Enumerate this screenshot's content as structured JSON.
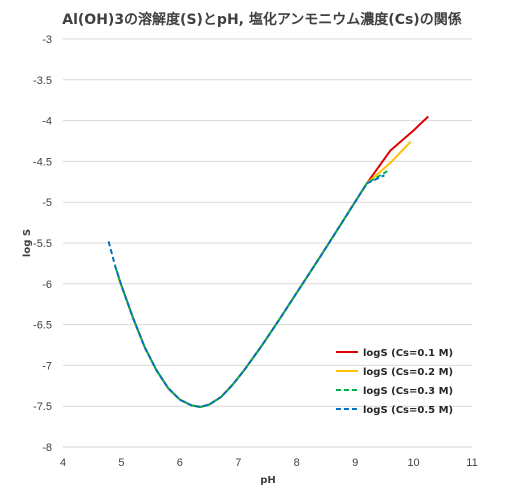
{
  "chart_data": {
    "type": "line",
    "title": "Al(OH)3の溶解度(S)とpH, 塩化アンモニウム濃度(Cs)の関係",
    "xlabel": "pH",
    "ylabel": "log S",
    "xlim": [
      4,
      11
    ],
    "ylim": [
      -8,
      -3
    ],
    "xticks": [
      4,
      5,
      6,
      7,
      8,
      9,
      10,
      11
    ],
    "yticks": [
      -3,
      -3.5,
      -4,
      -4.5,
      -5,
      -5.5,
      -6,
      -6.5,
      -7,
      -7.5,
      -8
    ],
    "xtick_labels": [
      "4",
      "5",
      "6",
      "7",
      "8",
      "9",
      "10",
      "11"
    ],
    "ytick_labels": [
      "-3",
      "-3.5",
      "-4",
      "-4.5",
      "-5",
      "-5.5",
      "-6",
      "-6.5",
      "-7",
      "-7.5",
      "-8"
    ],
    "grid": "horizontal",
    "legend_position": "bottom-right",
    "series": [
      {
        "name": "logS (Cs=0.1 M)",
        "color": "#e00000",
        "dash": "solid",
        "x": [
          5.0,
          5.2,
          5.4,
          5.6,
          5.8,
          6.0,
          6.2,
          6.35,
          6.5,
          6.7,
          6.9,
          7.1,
          7.4,
          7.7,
          8.0,
          8.4,
          8.8,
          9.2,
          9.6,
          10.0,
          10.25
        ],
        "y": [
          -6.02,
          -6.42,
          -6.78,
          -7.06,
          -7.28,
          -7.42,
          -7.49,
          -7.51,
          -7.48,
          -7.39,
          -7.24,
          -7.06,
          -6.76,
          -6.44,
          -6.11,
          -5.67,
          -5.22,
          -4.77,
          -4.37,
          -4.12,
          -3.95
        ]
      },
      {
        "name": "logS (Cs=0.2 M)",
        "color": "#ffc000",
        "dash": "solid",
        "x": [
          4.95,
          5.2,
          5.4,
          5.6,
          5.8,
          6.0,
          6.2,
          6.35,
          6.5,
          6.7,
          6.9,
          7.1,
          7.4,
          7.7,
          8.0,
          8.4,
          8.8,
          9.2,
          9.6,
          9.95
        ],
        "y": [
          -5.93,
          -6.42,
          -6.78,
          -7.06,
          -7.28,
          -7.42,
          -7.49,
          -7.51,
          -7.48,
          -7.39,
          -7.24,
          -7.06,
          -6.76,
          -6.44,
          -6.11,
          -5.67,
          -5.22,
          -4.77,
          -4.52,
          -4.26
        ]
      },
      {
        "name": "logS (Cs=0.3 M)",
        "color": "#00b050",
        "dash": "dashed",
        "x": [
          4.9,
          5.0,
          5.2,
          5.4,
          5.6,
          5.8,
          6.0,
          6.2,
          6.35,
          6.5,
          6.7,
          6.9,
          7.1,
          7.4,
          7.7,
          8.0,
          8.4,
          8.8,
          9.2,
          9.55
        ],
        "y": [
          -5.8,
          -6.02,
          -6.42,
          -6.78,
          -7.06,
          -7.28,
          -7.42,
          -7.49,
          -7.51,
          -7.48,
          -7.39,
          -7.24,
          -7.06,
          -6.76,
          -6.44,
          -6.11,
          -5.67,
          -5.22,
          -4.77,
          -4.62
        ]
      },
      {
        "name": "logS (Cs=0.5 M)",
        "color": "#0070c0",
        "dash": "dashed",
        "x": [
          4.78,
          4.9,
          5.0,
          5.2,
          5.4,
          5.6,
          5.8,
          6.0,
          6.2,
          6.35,
          6.5,
          6.7,
          6.9,
          7.1,
          7.4,
          7.7,
          8.0,
          8.4,
          8.8,
          9.2,
          9.5
        ],
        "y": [
          -5.48,
          -5.8,
          -6.02,
          -6.42,
          -6.78,
          -7.06,
          -7.28,
          -7.42,
          -7.49,
          -7.51,
          -7.48,
          -7.39,
          -7.24,
          -7.06,
          -6.76,
          -6.44,
          -6.11,
          -5.67,
          -5.22,
          -4.77,
          -4.67
        ]
      }
    ]
  }
}
